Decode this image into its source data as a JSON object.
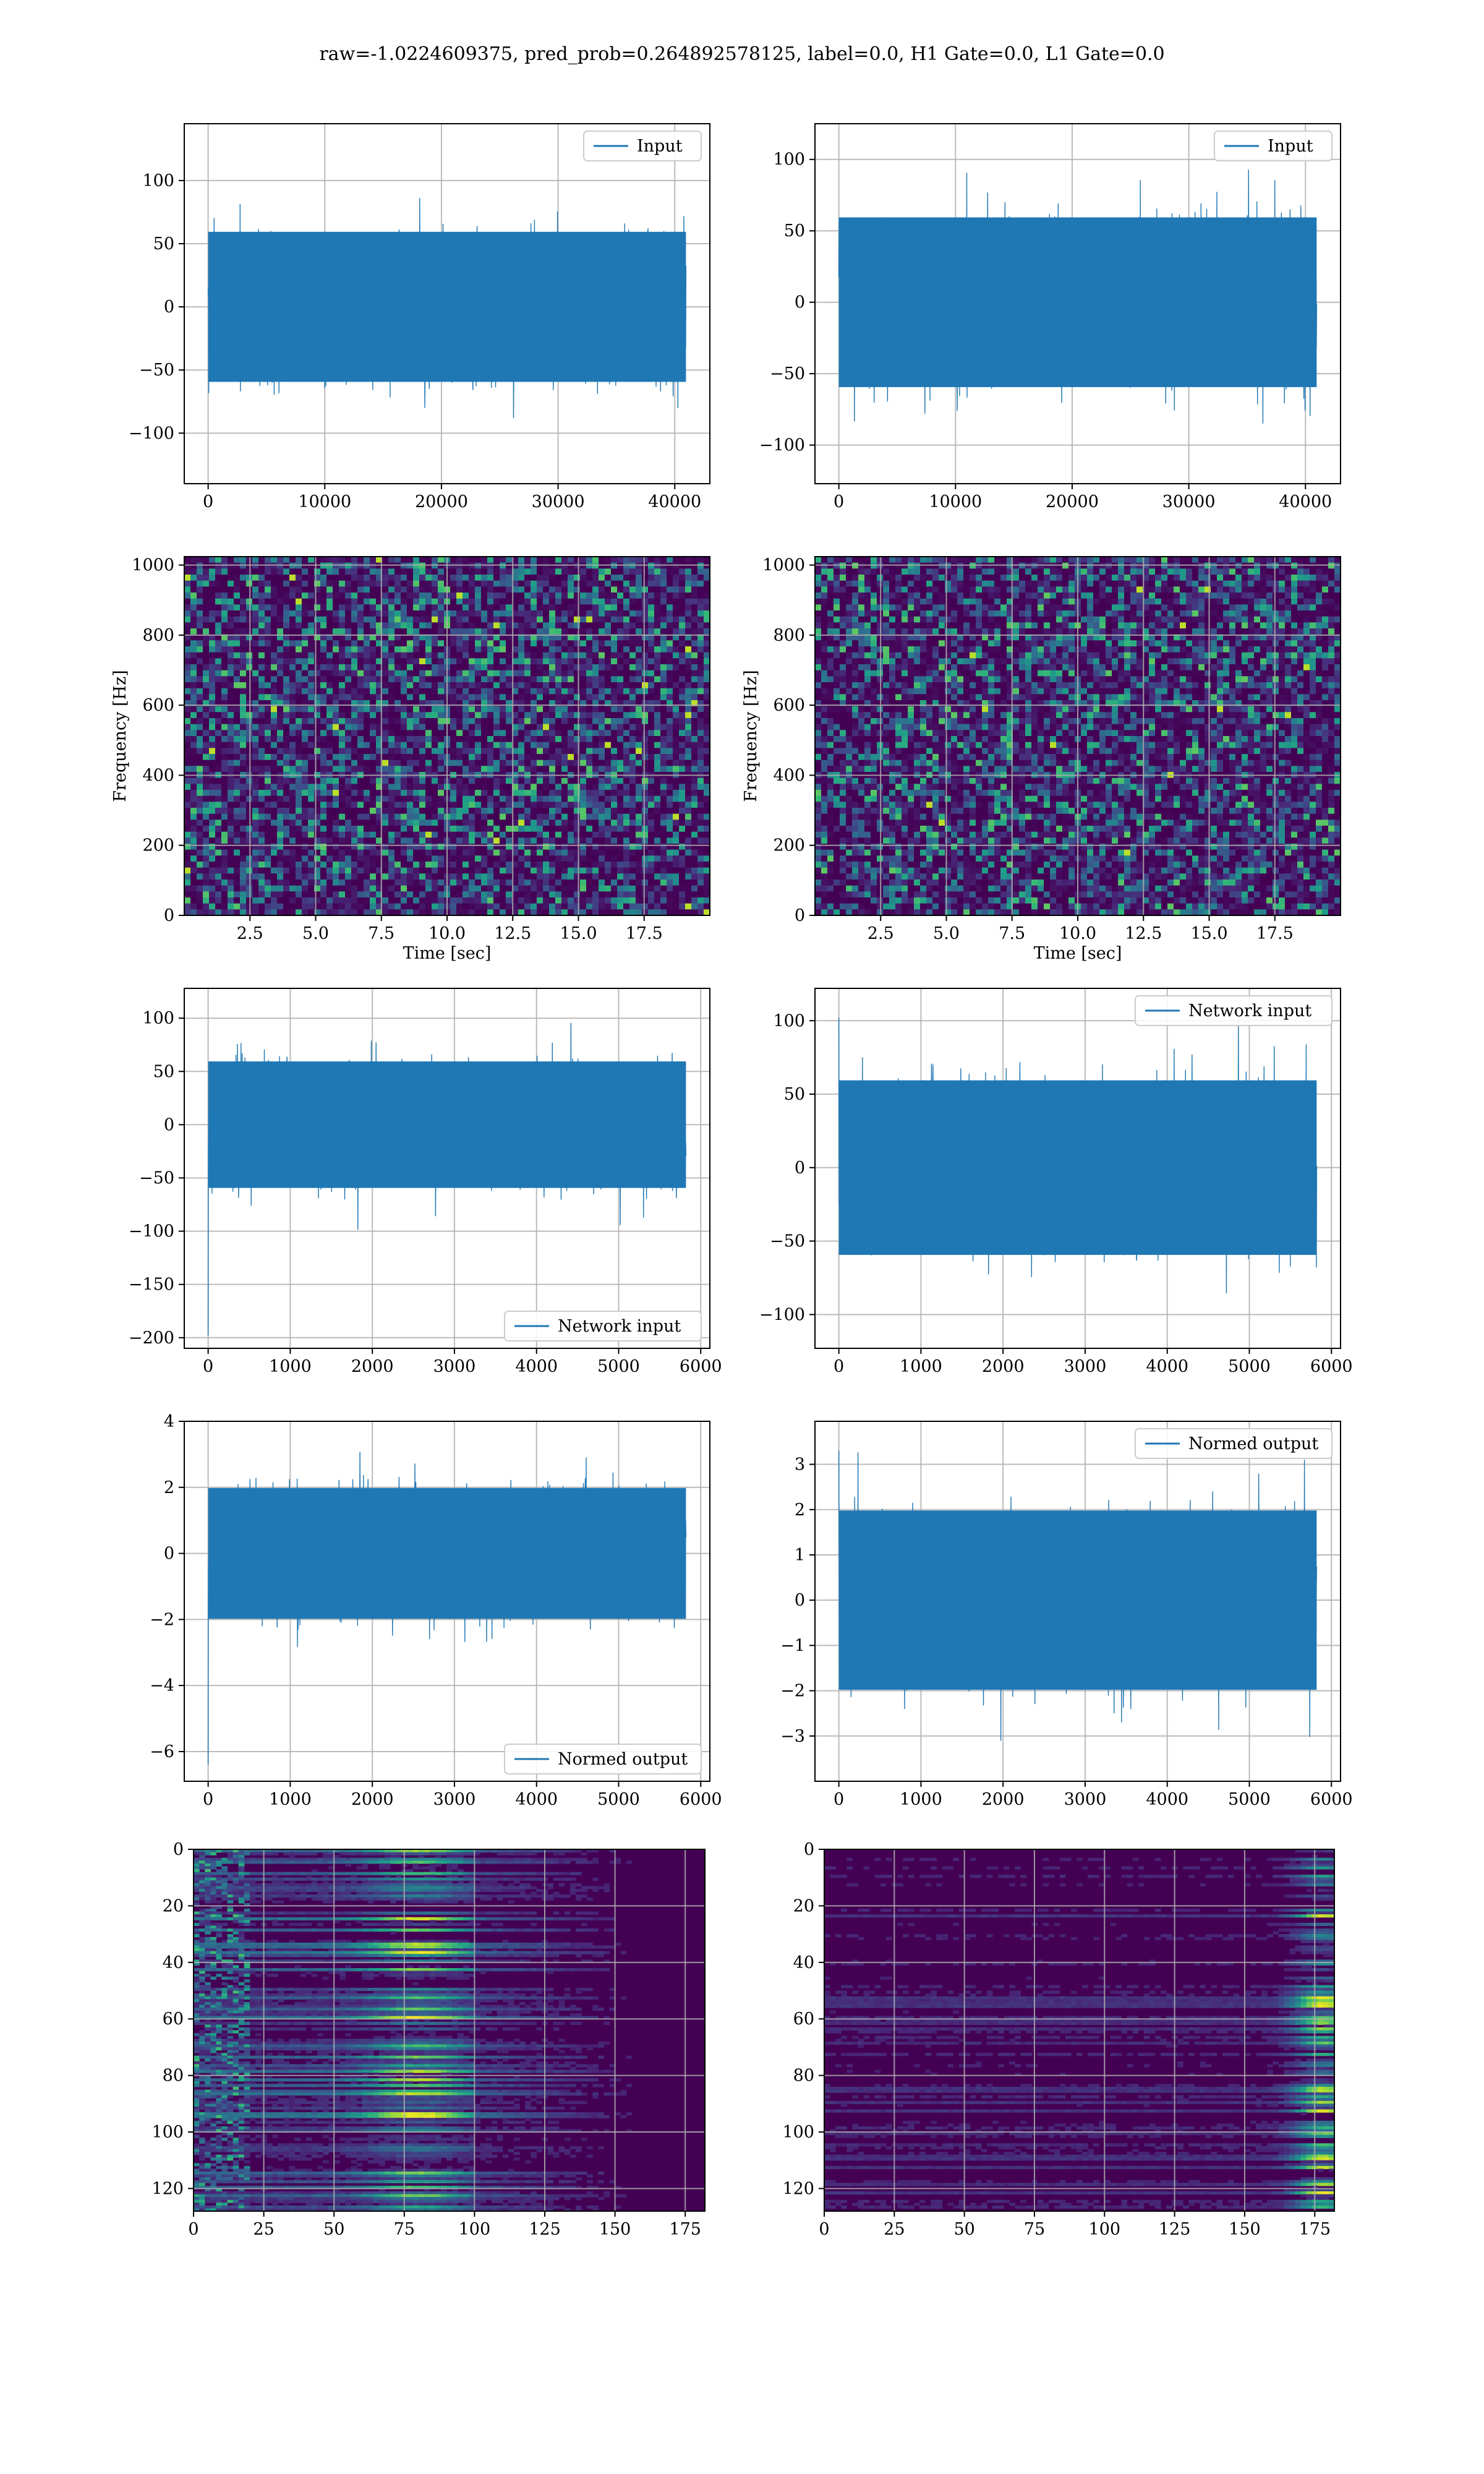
{
  "figure": {
    "suptitle": "raw=-1.0224609375, pred_prob=0.264892578125, label=0.0, H1 Gate=0.0, L1 Gate=0.0"
  },
  "colors": {
    "line": "#1f77b4",
    "viridis_dark": "#440154",
    "viridis_mid": "#21918c",
    "viridis_light": "#5ec962",
    "viridis_yellow": "#fde725",
    "grid": "#b0b0b0"
  },
  "chart_data": [
    {
      "id": "h1-input",
      "type": "line",
      "legend": "Input",
      "legend_loc": "upper right",
      "x_range": [
        0,
        40960
      ],
      "amplitude_std": 27,
      "xlim": [
        -2048,
        43008
      ],
      "ylim": [
        -140,
        145
      ],
      "xticks": [
        0,
        10000,
        20000,
        30000,
        40000
      ],
      "xticklabels": [
        "0",
        "10000",
        "20000",
        "30000",
        "40000"
      ],
      "yticks": [
        -100,
        -50,
        0,
        50,
        100
      ],
      "yticklabels": [
        "−100",
        "−50",
        "0",
        "50",
        "100"
      ],
      "grid": true,
      "xlabel": "",
      "ylabel": ""
    },
    {
      "id": "l1-input",
      "type": "line",
      "legend": "Input",
      "legend_loc": "upper right",
      "x_range": [
        0,
        40960
      ],
      "amplitude_std": 27,
      "xlim": [
        -2048,
        43008
      ],
      "ylim": [
        -127,
        125
      ],
      "xticks": [
        0,
        10000,
        20000,
        30000,
        40000
      ],
      "xticklabels": [
        "0",
        "10000",
        "20000",
        "30000",
        "40000"
      ],
      "yticks": [
        -100,
        -50,
        0,
        50,
        100
      ],
      "yticklabels": [
        "−100",
        "−50",
        "0",
        "50",
        "100"
      ],
      "grid": true,
      "xlabel": "",
      "ylabel": ""
    },
    {
      "id": "h1-spectrogram",
      "type": "heatmap",
      "colormap": "viridis",
      "xlim": [
        0,
        20
      ],
      "ylim": [
        0,
        1024
      ],
      "xticks": [
        2.5,
        5.0,
        7.5,
        10.0,
        12.5,
        15.0,
        17.5
      ],
      "xticklabels": [
        "2.5",
        "5.0",
        "7.5",
        "10.0",
        "12.5",
        "15.0",
        "17.5"
      ],
      "yticks": [
        0,
        200,
        400,
        600,
        800,
        1000
      ],
      "yticklabels": [
        "0",
        "200",
        "400",
        "600",
        "800",
        "1000"
      ],
      "grid": true,
      "xlabel": "Time [sec]",
      "ylabel": "Frequency [Hz]"
    },
    {
      "id": "l1-spectrogram",
      "type": "heatmap",
      "colormap": "viridis",
      "xlim": [
        0,
        20
      ],
      "ylim": [
        0,
        1024
      ],
      "xticks": [
        2.5,
        5.0,
        7.5,
        10.0,
        12.5,
        15.0,
        17.5
      ],
      "xticklabels": [
        "2.5",
        "5.0",
        "7.5",
        "10.0",
        "12.5",
        "15.0",
        "17.5"
      ],
      "yticks": [
        0,
        200,
        400,
        600,
        800,
        1000
      ],
      "yticklabels": [
        "0",
        "200",
        "400",
        "600",
        "800",
        "1000"
      ],
      "grid": true,
      "xlabel": "Time [sec]",
      "ylabel": "Frequency [Hz]"
    },
    {
      "id": "h1-network-input",
      "type": "line",
      "legend": "Network input",
      "legend_loc": "lower right",
      "x_range": [
        0,
        5820
      ],
      "amplitude_std": 27,
      "initial_spike": -198,
      "xlim": [
        -291,
        6111
      ],
      "ylim": [
        -210,
        128
      ],
      "xticks": [
        0,
        1000,
        2000,
        3000,
        4000,
        5000,
        6000
      ],
      "xticklabels": [
        "0",
        "1000",
        "2000",
        "3000",
        "4000",
        "5000",
        "6000"
      ],
      "yticks": [
        -200,
        -150,
        -100,
        -50,
        0,
        50,
        100
      ],
      "yticklabels": [
        "−200",
        "−150",
        "−100",
        "−50",
        "0",
        "50",
        "100"
      ],
      "grid": true,
      "xlabel": "",
      "ylabel": ""
    },
    {
      "id": "l1-network-input",
      "type": "line",
      "legend": "Network input",
      "legend_loc": "upper right",
      "x_range": [
        0,
        5820
      ],
      "amplitude_std": 27,
      "initial_spike": 102,
      "xlim": [
        -291,
        6111
      ],
      "ylim": [
        -123,
        122
      ],
      "xticks": [
        0,
        1000,
        2000,
        3000,
        4000,
        5000,
        6000
      ],
      "xticklabels": [
        "0",
        "1000",
        "2000",
        "3000",
        "4000",
        "5000",
        "6000"
      ],
      "yticks": [
        -100,
        -50,
        0,
        50,
        100
      ],
      "yticklabels": [
        "−100",
        "−50",
        "0",
        "50",
        "100"
      ],
      "grid": true,
      "xlabel": "",
      "ylabel": ""
    },
    {
      "id": "h1-normed-output",
      "type": "line",
      "legend": "Normed output",
      "legend_loc": "lower right",
      "x_range": [
        0,
        5820
      ],
      "amplitude_std": 0.9,
      "initial_spike": -6.4,
      "xlim": [
        -291,
        6111
      ],
      "ylim": [
        -6.9,
        4.0
      ],
      "xticks": [
        0,
        1000,
        2000,
        3000,
        4000,
        5000,
        6000
      ],
      "xticklabels": [
        "0",
        "1000",
        "2000",
        "3000",
        "4000",
        "5000",
        "6000"
      ],
      "yticks": [
        -6,
        -4,
        -2,
        0,
        2,
        4
      ],
      "yticklabels": [
        "−6",
        "−4",
        "−2",
        "0",
        "2",
        "4"
      ],
      "grid": true,
      "xlabel": "",
      "ylabel": ""
    },
    {
      "id": "l1-normed-output",
      "type": "line",
      "legend": "Normed output",
      "legend_loc": "upper right",
      "x_range": [
        0,
        5820
      ],
      "amplitude_std": 0.9,
      "initial_spike": 3.3,
      "xlim": [
        -291,
        6111
      ],
      "ylim": [
        -4.0,
        3.95
      ],
      "xticks": [
        0,
        1000,
        2000,
        3000,
        4000,
        5000,
        6000
      ],
      "xticklabels": [
        "0",
        "1000",
        "2000",
        "3000",
        "4000",
        "5000",
        "6000"
      ],
      "yticks": [
        -3,
        -2,
        -1,
        0,
        1,
        2,
        3
      ],
      "yticklabels": [
        "−3",
        "−2",
        "−1",
        "0",
        "1",
        "2",
        "3"
      ],
      "grid": true,
      "xlabel": "",
      "ylabel": ""
    },
    {
      "id": "h1-feature-map",
      "type": "heatmap",
      "colormap": "viridis",
      "xlim": [
        0,
        182
      ],
      "ylim": [
        128,
        0
      ],
      "n_rows": 128,
      "n_cols": 182,
      "pattern": "bright bands concentrated between x=0 and x=100, peaks near x=80",
      "xticks": [
        0,
        25,
        50,
        75,
        100,
        125,
        150,
        175
      ],
      "xticklabels": [
        "0",
        "25",
        "50",
        "75",
        "100",
        "125",
        "150",
        "175"
      ],
      "yticks": [
        0,
        20,
        40,
        60,
        80,
        100,
        120
      ],
      "yticklabels": [
        "0",
        "20",
        "40",
        "60",
        "80",
        "100",
        "120"
      ],
      "grid": true,
      "xlabel": "",
      "ylabel": ""
    },
    {
      "id": "l1-feature-map",
      "type": "heatmap",
      "colormap": "viridis",
      "xlim": [
        0,
        182
      ],
      "ylim": [
        128,
        0
      ],
      "n_rows": 128,
      "n_cols": 182,
      "pattern": "mostly dark with bright spots concentrated near x=170-182",
      "xticks": [
        0,
        25,
        50,
        75,
        100,
        125,
        150,
        175
      ],
      "xticklabels": [
        "0",
        "25",
        "50",
        "75",
        "100",
        "125",
        "150",
        "175"
      ],
      "yticks": [
        0,
        20,
        40,
        60,
        80,
        100,
        120
      ],
      "yticklabels": [
        "0",
        "20",
        "40",
        "60",
        "80",
        "100",
        "120"
      ],
      "grid": true,
      "xlabel": "",
      "ylabel": ""
    }
  ]
}
